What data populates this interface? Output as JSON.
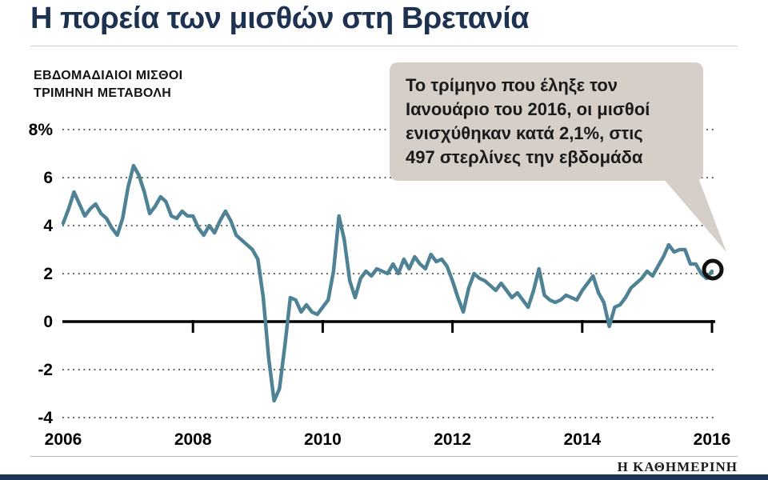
{
  "title": "Η πορεία των μισθών στη Βρετανία",
  "subtitle": {
    "line1": "ΕΒΔΟΜΑΔΙΑΙΟΙ ΜΙΣΘΟΙ",
    "line2": "ΤΡΙΜΗΝΗ ΜΕΤΑΒΟΛΗ"
  },
  "callout": {
    "lines": [
      "Το τρίμηνο που έληξε τον",
      "Ιανουάριο του 2016, οι μισθοί",
      "ενισχύθηκαν κατά 2,1%, στις",
      "497 στερλίνες την εβδομάδα"
    ]
  },
  "footer": {
    "brand": "Η ΚΑΘΗΜΕΡΙΝΗ"
  },
  "colors": {
    "line": "#4e8294",
    "callout_bg": "#d5cfc7",
    "title": "#1d3250",
    "footer_bar": "#1c3557",
    "axis": "#000000",
    "grid": "#444444",
    "marker": "#111111"
  },
  "chart_data": {
    "type": "line",
    "title": "Η πορεία των μισθών στη Βρετανία",
    "subtitle": "ΕΒΔΟΜΑΔΙΑΙΟΙ ΜΙΣΘΟΙ - ΤΡΙΜΗΝΗ ΜΕΤΑΒΟΛΗ",
    "x_unit": "monthly",
    "x_start": "2006-01",
    "x_end": "2016-01",
    "x_tick_years": [
      2006,
      2008,
      2010,
      2012,
      2014,
      2016
    ],
    "y_ticks": [
      8,
      6,
      4,
      2,
      0,
      -2,
      -4
    ],
    "y_tick_labels": [
      "8%",
      "6",
      "4",
      "2",
      "0",
      "-2",
      "-4"
    ],
    "ylim": [
      -4.4,
      8.6
    ],
    "grid": "dotted-horizontal",
    "legend": "none",
    "highlight_last_point": true,
    "last_value": 2.1,
    "series": [
      {
        "name": "Τριμηνιαία μεταβολή εβδομαδιαίων μισθών (%)",
        "values": [
          4.1,
          4.7,
          5.4,
          4.9,
          4.4,
          4.7,
          4.9,
          4.5,
          4.3,
          3.9,
          3.6,
          4.3,
          5.6,
          6.5,
          6.1,
          5.4,
          4.5,
          4.8,
          5.2,
          5.0,
          4.4,
          4.3,
          4.6,
          4.4,
          4.4,
          3.9,
          3.6,
          4.0,
          3.7,
          4.2,
          4.6,
          4.2,
          3.6,
          3.4,
          3.2,
          3.0,
          2.6,
          1.0,
          -1.5,
          -3.3,
          -2.8,
          -1.0,
          1.0,
          0.9,
          0.4,
          0.7,
          0.4,
          0.3,
          0.6,
          0.9,
          2.1,
          4.4,
          3.4,
          1.7,
          1.0,
          1.8,
          2.1,
          1.9,
          2.2,
          2.1,
          2.0,
          2.4,
          2.0,
          2.6,
          2.2,
          2.7,
          2.4,
          2.2,
          2.8,
          2.5,
          2.6,
          2.3,
          1.7,
          1.0,
          0.4,
          1.4,
          2.0,
          1.8,
          1.7,
          1.5,
          1.3,
          1.6,
          1.3,
          1.0,
          1.2,
          0.9,
          0.6,
          1.3,
          2.2,
          1.1,
          0.9,
          0.8,
          0.9,
          1.1,
          1.0,
          0.9,
          1.3,
          1.6,
          1.9,
          1.2,
          0.8,
          -0.2,
          0.6,
          0.7,
          1.0,
          1.4,
          1.6,
          1.8,
          2.1,
          1.9,
          2.3,
          2.7,
          3.2,
          2.9,
          3.0,
          3.0,
          2.4,
          2.4,
          2.0,
          1.8,
          2.1
        ]
      }
    ]
  }
}
